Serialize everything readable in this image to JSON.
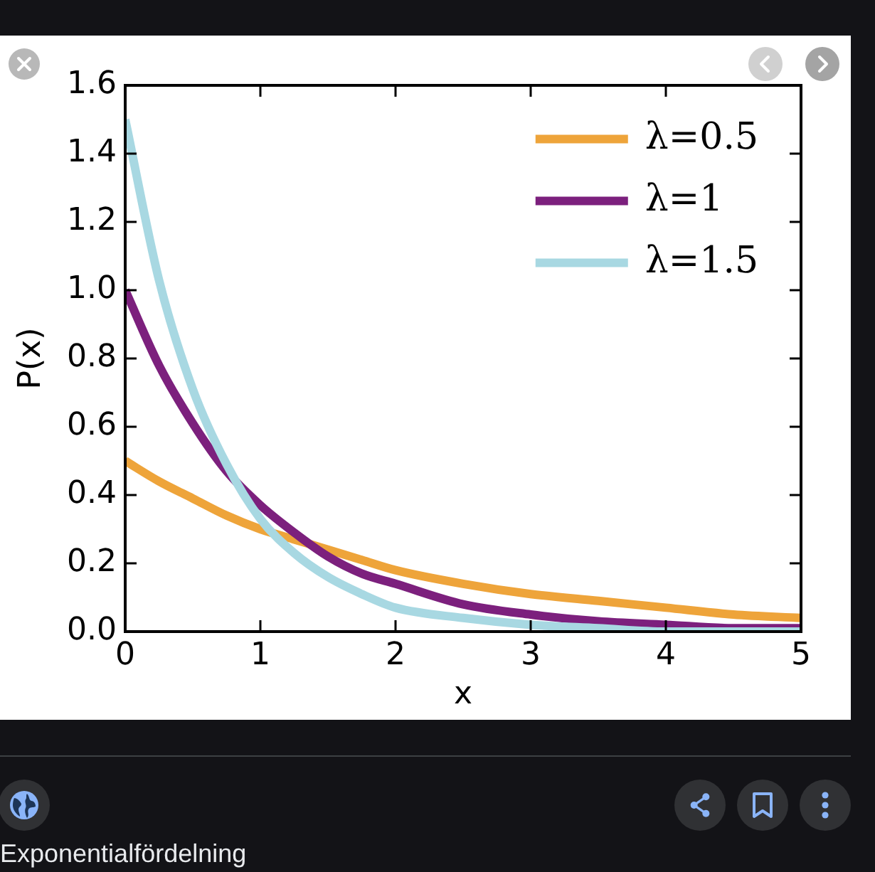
{
  "chart_data": {
    "type": "line",
    "xlabel": "x",
    "ylabel": "P(x)",
    "x": [
      0,
      0.25,
      0.5,
      0.75,
      1,
      1.25,
      1.5,
      1.75,
      2,
      2.5,
      3,
      3.5,
      4,
      4.5,
      5
    ],
    "series": [
      {
        "name": "λ=0.5",
        "color": "#eea43a",
        "values": [
          0.5,
          0.44,
          0.39,
          0.34,
          0.3,
          0.27,
          0.24,
          0.21,
          0.18,
          0.14,
          0.11,
          0.09,
          0.07,
          0.05,
          0.04
        ]
      },
      {
        "name": "λ=1",
        "color": "#7c207d",
        "values": [
          1.0,
          0.78,
          0.61,
          0.47,
          0.37,
          0.29,
          0.22,
          0.17,
          0.14,
          0.08,
          0.05,
          0.03,
          0.02,
          0.01,
          0.01
        ]
      },
      {
        "name": "λ=1.5",
        "color": "#a8d8e2",
        "values": [
          1.5,
          1.03,
          0.71,
          0.49,
          0.33,
          0.23,
          0.16,
          0.11,
          0.07,
          0.04,
          0.02,
          0.01,
          0.0,
          0.0,
          0.0
        ]
      }
    ],
    "xlim": [
      0,
      5
    ],
    "ylim": [
      0,
      1.6
    ],
    "xticks": [
      0,
      1,
      2,
      3,
      4,
      5
    ],
    "yticks": [
      {
        "value": 0,
        "label": "0.0"
      },
      0.2,
      0.4,
      0.6,
      0.8,
      {
        "value": 1,
        "label": "1.0"
      },
      1.2,
      1.4,
      1.6
    ],
    "grid": false,
    "legend": "top right",
    "marker": "none",
    "line_style": "solid",
    "annotations": [
      "Exponentialfördelning"
    ]
  }
}
